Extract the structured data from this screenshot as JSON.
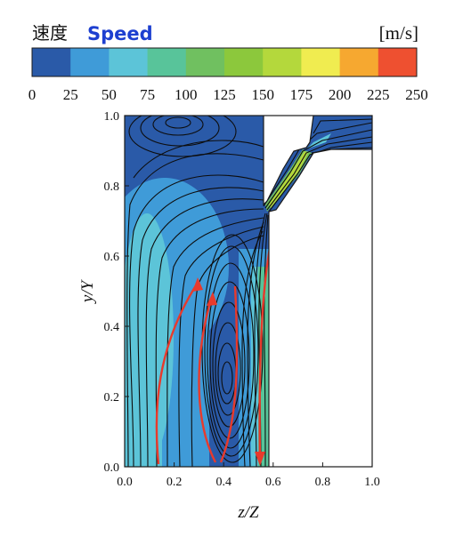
{
  "chart_data": {
    "type": "heatmap",
    "title_jp": "速度",
    "title_en": "Speed",
    "unit": "[m/s]",
    "colorbar": {
      "min": 0,
      "max": 250,
      "ticks": [
        "0",
        "25",
        "50",
        "75",
        "100",
        "125",
        "150",
        "175",
        "200",
        "225",
        "250"
      ],
      "colors": [
        "#2a5aa8",
        "#3f9bd8",
        "#5cc4d8",
        "#58c49a",
        "#70c060",
        "#8cc83c",
        "#b4d83c",
        "#f0ec50",
        "#f6a830",
        "#ee5030"
      ]
    },
    "xlabel": "z/Z",
    "ylabel": "y/Y",
    "xlim": [
      0,
      1
    ],
    "ylim": [
      0,
      1
    ],
    "xticks": [
      "0.0",
      "0.2",
      "0.4",
      "0.6",
      "0.8",
      "1.0"
    ],
    "yticks": [
      "0.0",
      "0.2",
      "0.4",
      "0.6",
      "0.8",
      "1.0"
    ],
    "accent": "#e83a2c"
  }
}
